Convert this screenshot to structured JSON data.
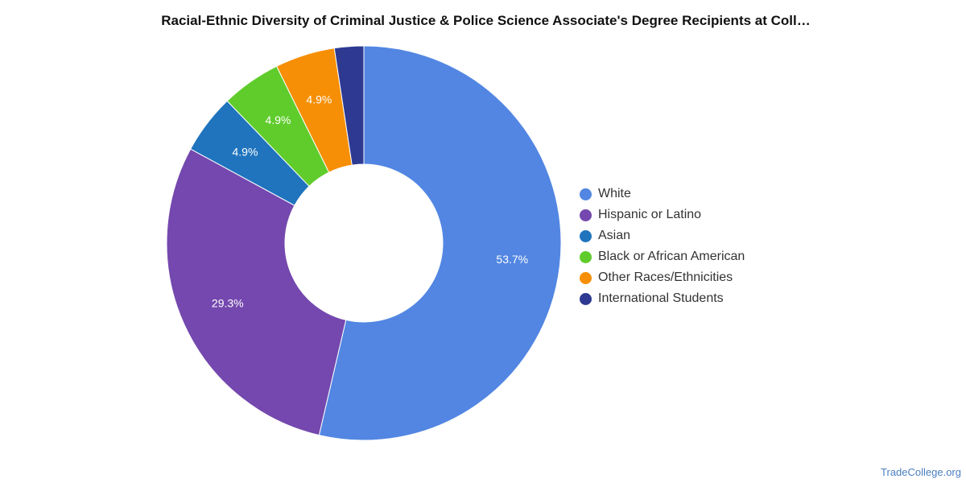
{
  "chart_data": {
    "type": "pie",
    "variant": "donut",
    "title": "Racial-Ethnic Diversity of Criminal Justice & Police Science Associate's Degree Recipients at Coll…",
    "legend_position": "right",
    "series": [
      {
        "name": "White",
        "value": 53.7,
        "label": "53.7%",
        "color": "#5286e2"
      },
      {
        "name": "Hispanic or Latino",
        "value": 29.3,
        "label": "29.3%",
        "color": "#7448ae"
      },
      {
        "name": "Asian",
        "value": 4.9,
        "label": "4.9%",
        "color": "#1f74bd"
      },
      {
        "name": "Black or African American",
        "value": 4.9,
        "label": "4.9%",
        "color": "#60cc2c"
      },
      {
        "name": "Other Races/Ethnicities",
        "value": 4.9,
        "label": "4.9%",
        "color": "#f68f05"
      },
      {
        "name": "International Students",
        "value": 2.4,
        "label": "",
        "color": "#2e3a92"
      }
    ]
  },
  "watermark": "TradeCollege.org"
}
